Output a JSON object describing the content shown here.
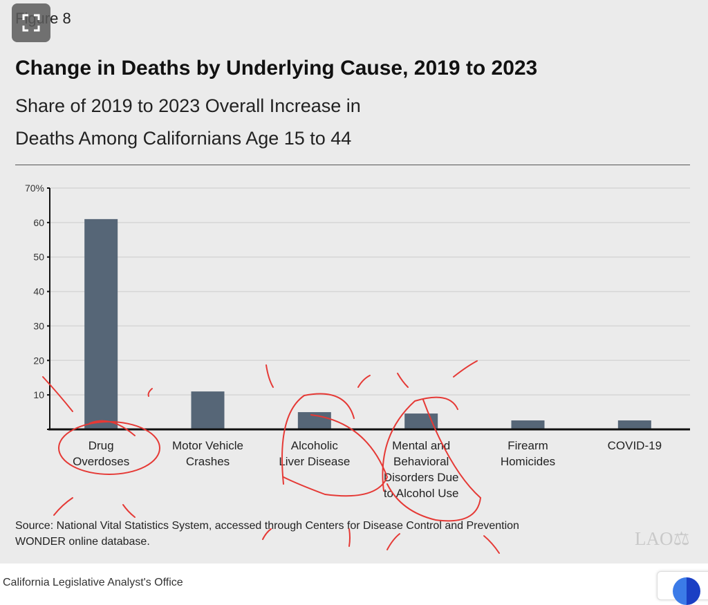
{
  "figure_label": "Figure 8",
  "footer": "California Legislative Analyst's Office",
  "logo_text": "LAO",
  "source": [
    "Source: National Vital Statistics System, accessed through Centers for Disease Control and Prevention",
    "WONDER online database."
  ],
  "chart_data": {
    "type": "bar",
    "title": "Change in Deaths by Underlying Cause, 2019 to 2023",
    "subtitle": [
      "Share of 2019 to 2023 Overall Increase in",
      "Deaths Among Californians Age 15 to 44"
    ],
    "categories": [
      [
        "Drug",
        "Overdoses"
      ],
      [
        "Motor Vehicle",
        "Crashes"
      ],
      [
        "Alcoholic",
        "Liver Disease"
      ],
      [
        "Mental and",
        "Behavioral",
        "Disorders Due",
        "to Alcohol Use"
      ],
      [
        "Firearm",
        "Homicides"
      ],
      [
        "COVID-19"
      ]
    ],
    "values": [
      61,
      11,
      5,
      4.6,
      2.6,
      2.6
    ],
    "ylim": [
      0,
      70
    ],
    "yticks": [
      0,
      10,
      20,
      30,
      40,
      50,
      60,
      70
    ],
    "ytick_labels": [
      "",
      "10",
      "20",
      "30",
      "40",
      "50",
      "60",
      "70%"
    ],
    "xlabel": "",
    "ylabel": "",
    "grid": true,
    "bar_color": "#566677"
  },
  "annotation_color": "#e53935"
}
